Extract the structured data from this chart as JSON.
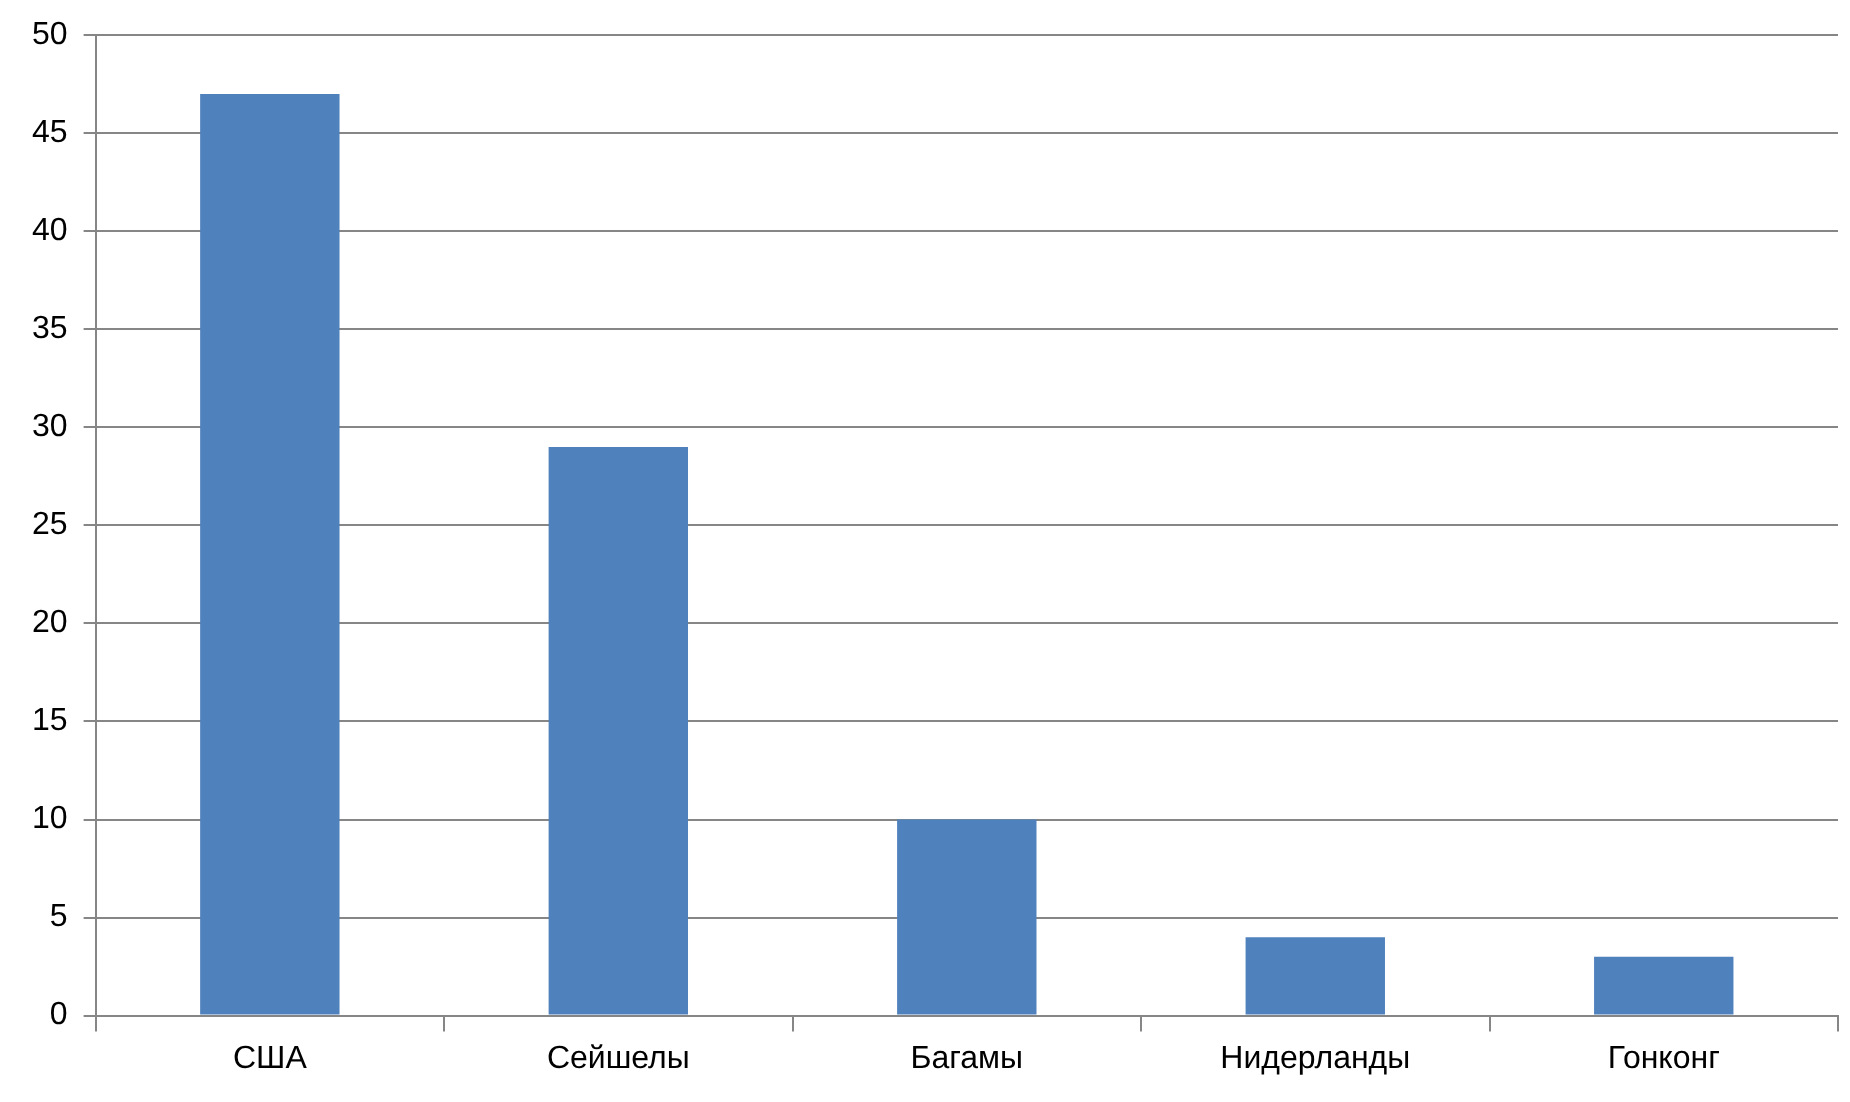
{
  "chart_data": {
    "type": "bar",
    "categories": [
      "США",
      "Сейшелы",
      "Багамы",
      "Нидерланды",
      "Гонконг"
    ],
    "values": [
      47,
      29,
      10,
      4,
      3
    ],
    "color": "#4f81bd",
    "ylim": [
      0,
      50
    ],
    "yticks": [
      0,
      5,
      10,
      15,
      20,
      25,
      30,
      35,
      40,
      45,
      50
    ],
    "grid": "y"
  }
}
